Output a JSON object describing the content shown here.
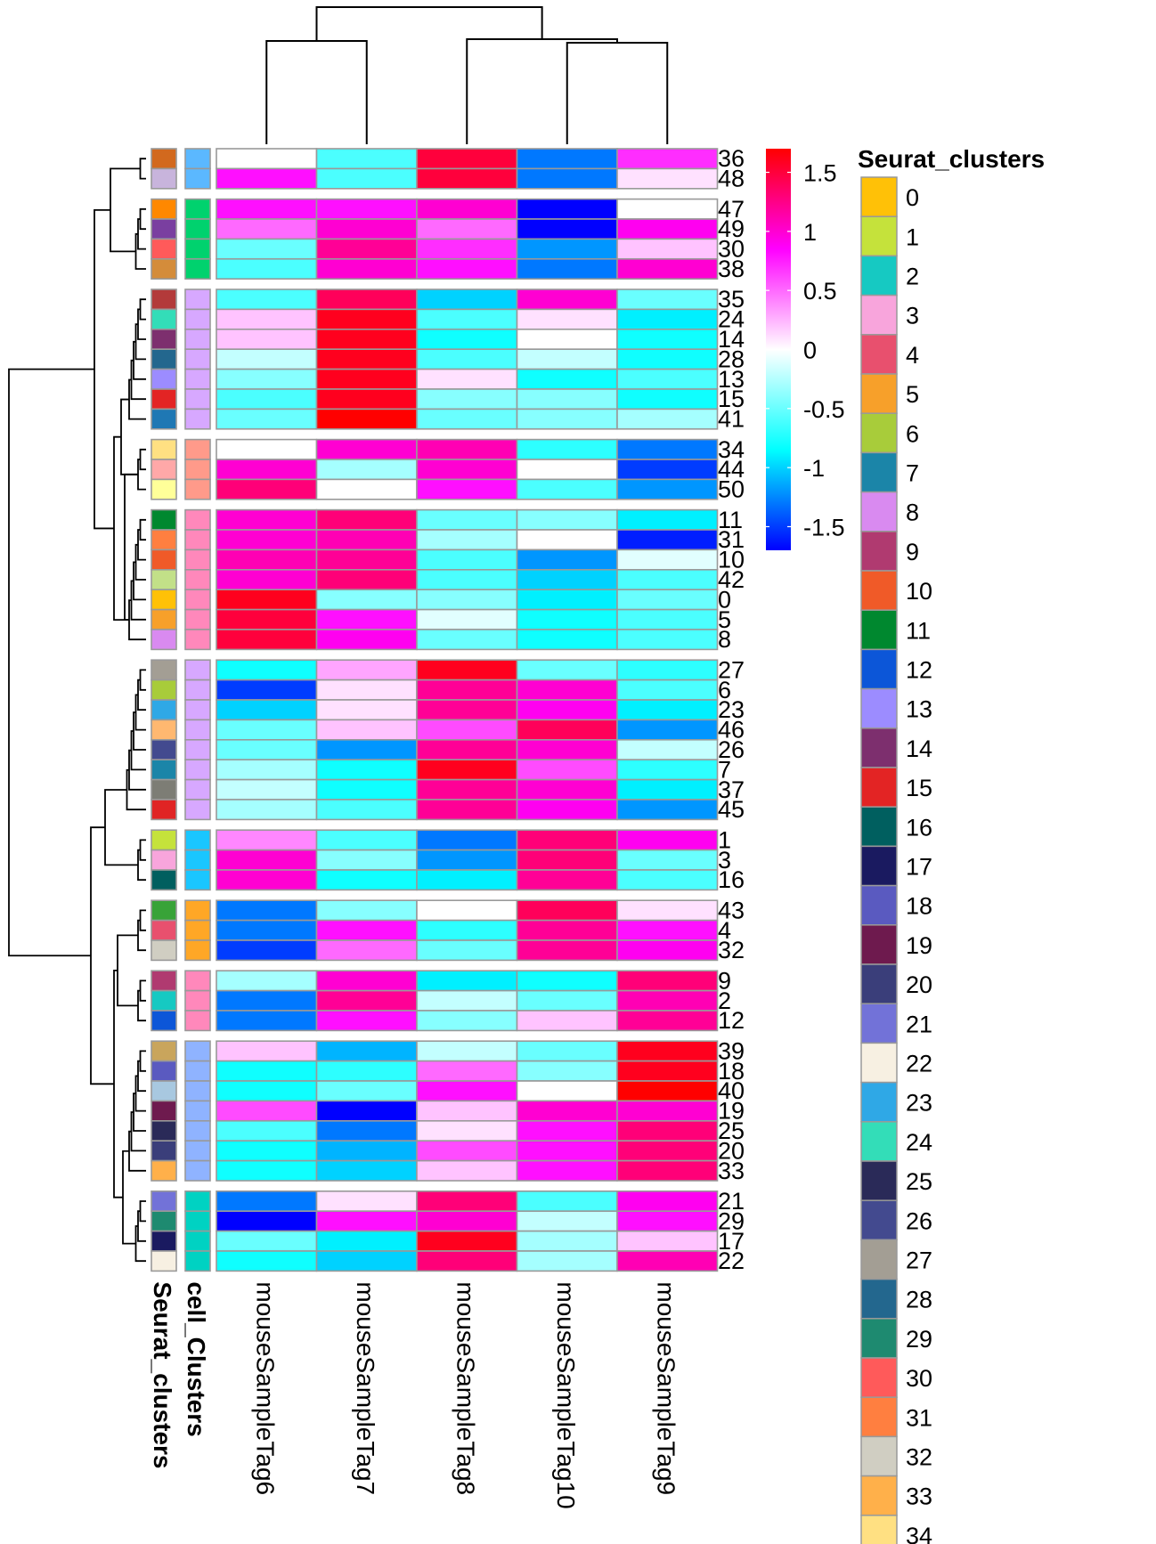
{
  "chart_data": {
    "type": "heatmap",
    "columns": [
      "mouseSampleTag6",
      "mouseSampleTag7",
      "mouseSampleTag8",
      "mouseSampleTag10",
      "mouseSampleTag9"
    ],
    "annotation_labels": [
      "Seurat_clusters",
      "cell_Clusters"
    ],
    "rows": [
      {
        "label": "36",
        "seurat": "#D2691E",
        "cell": "#5BB8FF",
        "values": [
          0.0,
          -0.6,
          1.5,
          -1.3,
          0.7
        ]
      },
      {
        "label": "48",
        "seurat": "#C8B4DC",
        "cell": "#5BB8FF",
        "values": [
          0.8,
          -0.6,
          1.5,
          -1.3,
          0.1
        ]
      },
      {
        "label": "47",
        "seurat": "#FF8800",
        "cell": "#00D26E",
        "values": [
          0.8,
          0.8,
          1.0,
          -1.8,
          0.0
        ]
      },
      {
        "label": "49",
        "seurat": "#7A3FA0",
        "cell": "#00D26E",
        "values": [
          0.5,
          1.0,
          0.5,
          -2.0,
          0.9
        ]
      },
      {
        "label": "30",
        "seurat": "#FF5A5A",
        "cell": "#00D26E",
        "values": [
          -0.5,
          1.2,
          0.7,
          -1.2,
          0.2
        ]
      },
      {
        "label": "38",
        "seurat": "#D48C3A",
        "cell": "#00D26E",
        "values": [
          -0.6,
          1.0,
          0.8,
          -1.3,
          1.0
        ]
      },
      {
        "label": "35",
        "seurat": "#B33A3A",
        "cell": "#D7A8FF",
        "values": [
          -0.6,
          1.4,
          -1.0,
          1.0,
          -0.5
        ]
      },
      {
        "label": "24",
        "seurat": "#33DDB8",
        "cell": "#D7A8FF",
        "values": [
          0.2,
          1.6,
          -0.6,
          0.1,
          -0.9
        ]
      },
      {
        "label": "14",
        "seurat": "#7D2F6E",
        "cell": "#D7A8FF",
        "values": [
          0.2,
          1.6,
          -0.8,
          0.0,
          -0.8
        ]
      },
      {
        "label": "28",
        "seurat": "#23678E",
        "cell": "#D7A8FF",
        "values": [
          -0.2,
          1.6,
          -0.6,
          -0.2,
          -0.8
        ]
      },
      {
        "label": "13",
        "seurat": "#9C8CFF",
        "cell": "#D7A8FF",
        "values": [
          -0.4,
          1.6,
          0.1,
          -0.8,
          -0.6
        ]
      },
      {
        "label": "15",
        "seurat": "#E32424",
        "cell": "#D7A8FF",
        "values": [
          -0.6,
          1.6,
          -0.4,
          -0.4,
          -0.8
        ]
      },
      {
        "label": "41",
        "seurat": "#1F78B4",
        "cell": "#D7A8FF",
        "values": [
          -0.5,
          1.7,
          -0.5,
          -0.4,
          -0.3
        ]
      },
      {
        "label": "34",
        "seurat": "#FFE082",
        "cell": "#FF9A8A",
        "values": [
          0.0,
          1.0,
          1.1,
          -0.7,
          -1.3
        ]
      },
      {
        "label": "44",
        "seurat": "#FFA8A8",
        "cell": "#FF9A8A",
        "values": [
          1.0,
          -0.3,
          1.0,
          0.0,
          -1.5
        ]
      },
      {
        "label": "50",
        "seurat": "#FFFF99",
        "cell": "#FF9A8A",
        "values": [
          1.3,
          0.0,
          0.8,
          -0.6,
          -1.2
        ]
      },
      {
        "label": "11",
        "seurat": "#00882F",
        "cell": "#FF88BB",
        "values": [
          1.0,
          1.3,
          -0.5,
          -0.4,
          -0.9
        ]
      },
      {
        "label": "31",
        "seurat": "#FF7F40",
        "cell": "#FF88BB",
        "values": [
          1.0,
          1.1,
          -0.3,
          0.0,
          -1.6
        ]
      },
      {
        "label": "10",
        "seurat": "#F05A28",
        "cell": "#FF88BB",
        "values": [
          1.1,
          1.2,
          -0.6,
          -1.2,
          -0.1
        ]
      },
      {
        "label": "42",
        "seurat": "#C2E088",
        "cell": "#FF88BB",
        "values": [
          1.0,
          1.3,
          -0.6,
          -1.0,
          -0.6
        ]
      },
      {
        "label": "0",
        "seurat": "#FFC107",
        "cell": "#FF88BB",
        "values": [
          1.6,
          -0.4,
          -0.4,
          -0.9,
          -0.5
        ]
      },
      {
        "label": "5",
        "seurat": "#F7A02A",
        "cell": "#FF88BB",
        "values": [
          1.5,
          0.8,
          -0.1,
          -0.8,
          -0.6
        ]
      },
      {
        "label": "8",
        "seurat": "#D98AF0",
        "cell": "#FF88BB",
        "values": [
          1.5,
          0.9,
          -0.5,
          -0.8,
          -0.6
        ]
      },
      {
        "label": "27",
        "seurat": "#A39E94",
        "cell": "#D7A8FF",
        "values": [
          -0.8,
          0.3,
          1.6,
          -0.5,
          -0.7
        ]
      },
      {
        "label": "6",
        "seurat": "#A8CC3A",
        "cell": "#D7A8FF",
        "values": [
          -1.5,
          0.1,
          1.2,
          1.0,
          -0.6
        ]
      },
      {
        "label": "23",
        "seurat": "#2FA8E6",
        "cell": "#D7A8FF",
        "values": [
          -1.0,
          0.1,
          1.2,
          0.9,
          -0.9
        ]
      },
      {
        "label": "46",
        "seurat": "#FFB870",
        "cell": "#D7A8FF",
        "values": [
          -0.5,
          0.2,
          0.6,
          1.4,
          -1.2
        ]
      },
      {
        "label": "26",
        "seurat": "#434A8F",
        "cell": "#D7A8FF",
        "values": [
          -0.5,
          -1.2,
          1.2,
          1.0,
          -0.2
        ]
      },
      {
        "label": "7",
        "seurat": "#1B85A8",
        "cell": "#D7A8FF",
        "values": [
          -0.3,
          -0.8,
          1.6,
          0.6,
          -0.7
        ]
      },
      {
        "label": "37",
        "seurat": "#7D7D75",
        "cell": "#D7A8FF",
        "values": [
          -0.2,
          -0.8,
          1.2,
          1.0,
          -0.9
        ]
      },
      {
        "label": "45",
        "seurat": "#E02424",
        "cell": "#D7A8FF",
        "values": [
          -0.3,
          -0.6,
          1.2,
          0.9,
          -1.2
        ]
      },
      {
        "label": "1",
        "seurat": "#C5E23B",
        "cell": "#1AC6FF",
        "values": [
          0.4,
          -0.6,
          -1.3,
          1.3,
          0.9
        ]
      },
      {
        "label": "3",
        "seurat": "#F8A5DC",
        "cell": "#1AC6FF",
        "values": [
          1.0,
          -0.4,
          -1.2,
          1.3,
          -0.5
        ]
      },
      {
        "label": "16",
        "seurat": "#005F5F",
        "cell": "#1AC6FF",
        "values": [
          1.0,
          -0.8,
          -0.9,
          1.2,
          -0.6
        ]
      },
      {
        "label": "43",
        "seurat": "#38A338",
        "cell": "#FFA726",
        "values": [
          -1.3,
          -0.4,
          0.0,
          1.4,
          0.1
        ]
      },
      {
        "label": "4",
        "seurat": "#E8506E",
        "cell": "#FFA726",
        "values": [
          -1.3,
          0.8,
          -0.7,
          1.2,
          0.8
        ]
      },
      {
        "label": "32",
        "seurat": "#D0CEC2",
        "cell": "#FFA726",
        "values": [
          -1.5,
          0.5,
          -0.5,
          1.2,
          0.9
        ]
      },
      {
        "label": "9",
        "seurat": "#B03A70",
        "cell": "#FF88BB",
        "values": [
          -0.3,
          1.0,
          -0.9,
          -0.8,
          1.3
        ]
      },
      {
        "label": "2",
        "seurat": "#16C9C2",
        "cell": "#FF88BB",
        "values": [
          -1.3,
          1.2,
          -0.2,
          -0.5,
          1.1
        ]
      },
      {
        "label": "12",
        "seurat": "#0C56D8",
        "cell": "#FF88BB",
        "values": [
          -1.3,
          0.8,
          -0.4,
          0.2,
          1.2
        ]
      },
      {
        "label": "39",
        "seurat": "#C9A55C",
        "cell": "#8FB3FF",
        "values": [
          0.2,
          -1.1,
          -0.2,
          -0.5,
          1.6
        ]
      },
      {
        "label": "18",
        "seurat": "#5A5AC0",
        "cell": "#8FB3FF",
        "values": [
          -0.8,
          -0.7,
          0.5,
          -0.4,
          1.6
        ]
      },
      {
        "label": "40",
        "seurat": "#A8C8E0",
        "cell": "#8FB3FF",
        "values": [
          -0.8,
          -0.5,
          0.8,
          0.0,
          1.7
        ]
      },
      {
        "label": "19",
        "seurat": "#6E1A4E",
        "cell": "#8FB3FF",
        "values": [
          0.6,
          -1.9,
          0.2,
          1.0,
          1.0
        ]
      },
      {
        "label": "25",
        "seurat": "#2A2A58",
        "cell": "#8FB3FF",
        "values": [
          -0.6,
          -1.3,
          0.1,
          0.8,
          1.3
        ]
      },
      {
        "label": "20",
        "seurat": "#3A3E7A",
        "cell": "#8FB3FF",
        "values": [
          -0.8,
          -1.1,
          0.6,
          0.8,
          1.3
        ]
      },
      {
        "label": "33",
        "seurat": "#FFB04A",
        "cell": "#8FB3FF",
        "values": [
          -0.8,
          -1.0,
          0.2,
          0.8,
          1.3
        ]
      },
      {
        "label": "21",
        "seurat": "#7272D8",
        "cell": "#00D2C2",
        "values": [
          -1.3,
          0.1,
          1.3,
          -0.6,
          0.9
        ]
      },
      {
        "label": "29",
        "seurat": "#1E8A70",
        "cell": "#00D2C2",
        "values": [
          -1.8,
          0.8,
          1.0,
          -0.2,
          0.8
        ]
      },
      {
        "label": "17",
        "seurat": "#1A1A60",
        "cell": "#00D2C2",
        "values": [
          -0.5,
          -0.9,
          1.6,
          -0.3,
          0.2
        ]
      },
      {
        "label": "22",
        "seurat": "#F7F0E2",
        "cell": "#00D2C2",
        "values": [
          -0.8,
          -1.0,
          1.3,
          -0.3,
          1.1
        ]
      }
    ],
    "row_groups": [
      2,
      4,
      7,
      3,
      7,
      8,
      3,
      3,
      3,
      7,
      4
    ],
    "scale": {
      "min": -1.7,
      "max": 1.7,
      "ticks": [
        1.5,
        1,
        0.5,
        0,
        -0.5,
        -1,
        -1.5
      ],
      "tick_labels": [
        "1.5",
        "1",
        "0.5",
        "0",
        "-0.5",
        "-1",
        "-1.5"
      ],
      "stops": [
        "#0000FF",
        "#00FFFF",
        "#FFFFFF",
        "#FF00FF",
        "#FF0000"
      ]
    },
    "legend": {
      "title": "Seurat_clusters",
      "items": [
        {
          "label": "0",
          "color": "#FFC107"
        },
        {
          "label": "1",
          "color": "#C5E23B"
        },
        {
          "label": "2",
          "color": "#16C9C2"
        },
        {
          "label": "3",
          "color": "#F8A5DC"
        },
        {
          "label": "4",
          "color": "#E8506E"
        },
        {
          "label": "5",
          "color": "#F7A02A"
        },
        {
          "label": "6",
          "color": "#A8CC3A"
        },
        {
          "label": "7",
          "color": "#1B85A8"
        },
        {
          "label": "8",
          "color": "#D98AF0"
        },
        {
          "label": "9",
          "color": "#B03A70"
        },
        {
          "label": "10",
          "color": "#F05A28"
        },
        {
          "label": "11",
          "color": "#00882F"
        },
        {
          "label": "12",
          "color": "#0C56D8"
        },
        {
          "label": "13",
          "color": "#9C8CFF"
        },
        {
          "label": "14",
          "color": "#7D2F6E"
        },
        {
          "label": "15",
          "color": "#E32424"
        },
        {
          "label": "16",
          "color": "#005F5F"
        },
        {
          "label": "17",
          "color": "#1A1A60"
        },
        {
          "label": "18",
          "color": "#5A5AC0"
        },
        {
          "label": "19",
          "color": "#6E1A4E"
        },
        {
          "label": "20",
          "color": "#3A3E7A"
        },
        {
          "label": "21",
          "color": "#7272D8"
        },
        {
          "label": "22",
          "color": "#F7F0E2"
        },
        {
          "label": "23",
          "color": "#2FA8E6"
        },
        {
          "label": "24",
          "color": "#33DDB8"
        },
        {
          "label": "25",
          "color": "#2A2A58"
        },
        {
          "label": "26",
          "color": "#434A8F"
        },
        {
          "label": "27",
          "color": "#A39E94"
        },
        {
          "label": "28",
          "color": "#23678E"
        },
        {
          "label": "29",
          "color": "#1E8A70"
        },
        {
          "label": "30",
          "color": "#FF5A5A"
        },
        {
          "label": "31",
          "color": "#FF7F40"
        },
        {
          "label": "32",
          "color": "#D0CEC2"
        },
        {
          "label": "33",
          "color": "#FFB04A"
        },
        {
          "label": "34",
          "color": "#FFE082"
        }
      ]
    }
  }
}
